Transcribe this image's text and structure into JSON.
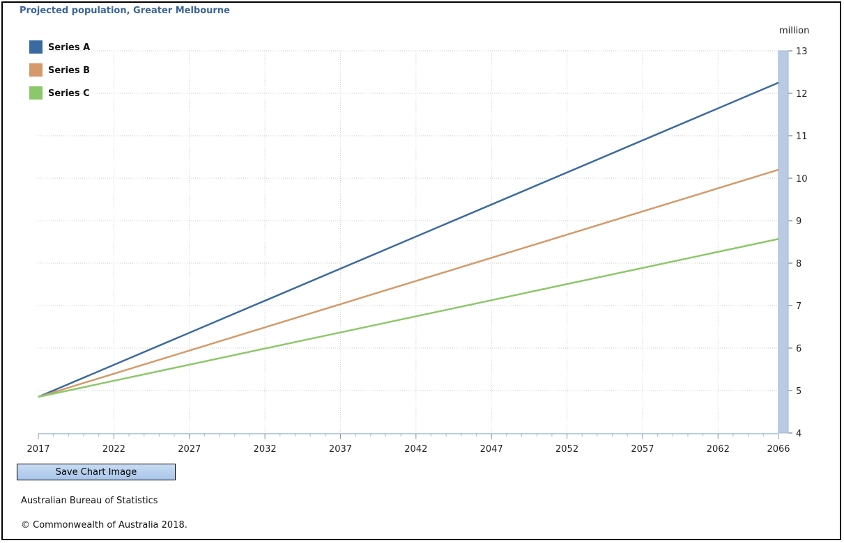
{
  "chart_data": {
    "type": "line",
    "title": "Projected population, Greater Melbourne",
    "ylabel": "million",
    "xlabel": "",
    "x_ticks": [
      2017,
      2022,
      2027,
      2032,
      2037,
      2042,
      2047,
      2052,
      2057,
      2062,
      2066
    ],
    "y_ticks": [
      4,
      5,
      6,
      7,
      8,
      9,
      10,
      11,
      12,
      13
    ],
    "xlim": [
      2017,
      2066
    ],
    "ylim": [
      4,
      13
    ],
    "grid": true,
    "legend_position": "top-left",
    "series": [
      {
        "name": "Series A",
        "color": "#3b6aa0",
        "x": [
          2017,
          2066
        ],
        "values": [
          4.85,
          12.25
        ]
      },
      {
        "name": "Series B",
        "color": "#d49a6a",
        "x": [
          2017,
          2066
        ],
        "values": [
          4.85,
          10.2
        ]
      },
      {
        "name": "Series C",
        "color": "#8cc86a",
        "x": [
          2017,
          2066
        ],
        "values": [
          4.85,
          8.57
        ]
      }
    ]
  },
  "controls": {
    "save_label": "Save Chart Image"
  },
  "footer": {
    "source": "Australian Bureau of Statistics",
    "copyright": "© Commonwealth of Australia 2018."
  }
}
